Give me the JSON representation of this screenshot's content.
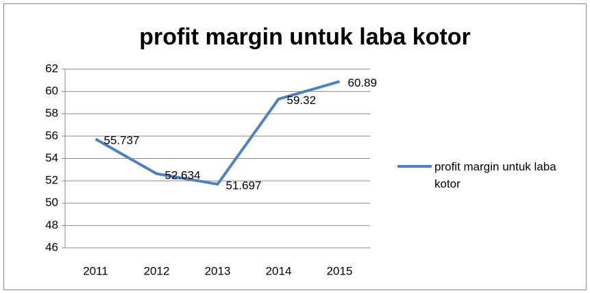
{
  "chart_data": {
    "type": "line",
    "title": "profit margin untuk laba kotor",
    "categories": [
      "2011",
      "2012",
      "2013",
      "2014",
      "2015"
    ],
    "series": [
      {
        "name": "profit margin untuk laba kotor",
        "color": "#4f81bd",
        "values": [
          55.737,
          52.634,
          51.697,
          59.32,
          60.89
        ]
      }
    ],
    "ylim": [
      46,
      62
    ],
    "yticks": [
      46,
      48,
      50,
      52,
      54,
      56,
      58,
      60,
      62
    ],
    "grid": true,
    "legend": "right",
    "data_labels": true
  }
}
